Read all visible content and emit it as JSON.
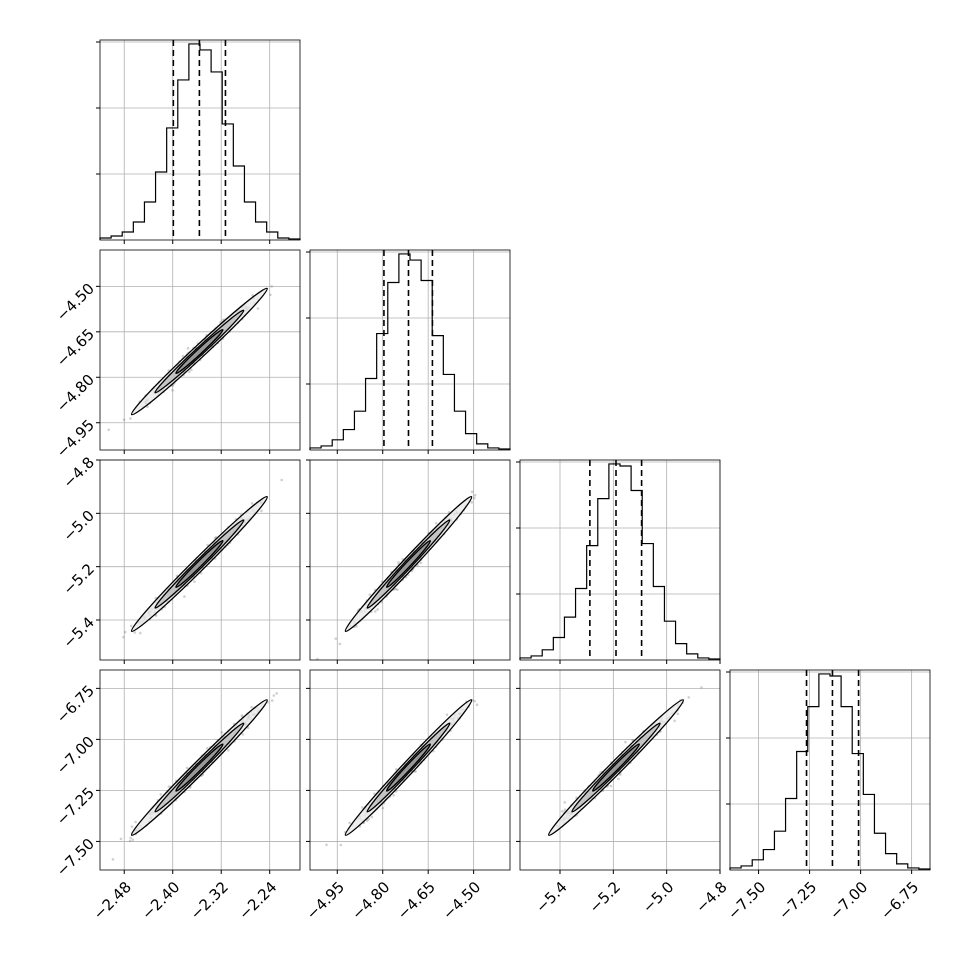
{
  "chart_data": {
    "type": "corner",
    "grid": true,
    "parameters": [
      {
        "index": 0,
        "range": [
          -2.52,
          -2.19
        ],
        "ticks": [
          -2.48,
          -2.4,
          -2.32,
          -2.24
        ],
        "tick_labels": [
          "−2.48",
          "−2.40",
          "−2.32",
          "−2.24"
        ],
        "quantiles": [
          -2.399,
          -2.356,
          -2.313
        ],
        "hist": [
          1,
          2,
          4,
          9,
          19,
          34,
          56,
          80,
          98,
          95,
          84,
          58,
          37,
          19,
          9,
          4,
          1,
          0.5
        ]
      },
      {
        "index": 1,
        "range": [
          -5.04,
          -4.38
        ],
        "ticks": [
          -4.95,
          -4.8,
          -4.65,
          -4.5
        ],
        "tick_labels": [
          "−4.95",
          "−4.80",
          "−4.65",
          "−4.50"
        ],
        "quantiles": [
          -4.796,
          -4.715,
          -4.636
        ],
        "hist": [
          1,
          2,
          5,
          10,
          19,
          35,
          57,
          82,
          96,
          93,
          83,
          56,
          37,
          19,
          8,
          3,
          1,
          0.5
        ]
      },
      {
        "index": 2,
        "range": [
          -5.55,
          -4.8
        ],
        "ticks": [
          -5.4,
          -5.2,
          -5.0,
          -4.8
        ],
        "tick_labels": [
          "−5.4",
          "−5.2",
          "−5.0",
          "−4.8"
        ],
        "quantiles": [
          -5.288,
          -5.19,
          -5.094
        ],
        "hist": [
          1,
          2,
          5,
          11,
          21,
          35,
          56,
          79,
          96,
          95,
          83,
          57,
          36,
          19,
          8,
          3,
          1,
          0.5
        ]
      },
      {
        "index": 3,
        "range": [
          -7.64,
          -6.66
        ],
        "ticks": [
          -7.5,
          -7.25,
          -7.0,
          -6.75
        ],
        "tick_labels": [
          "−7.50",
          "−7.25",
          "−7.00",
          "−6.75"
        ],
        "quantiles": [
          -7.265,
          -7.138,
          -7.01
        ],
        "hist": [
          1,
          2,
          5,
          10,
          19,
          35,
          58,
          80,
          96,
          95,
          80,
          57,
          37,
          18,
          8,
          3,
          1,
          0.5
        ]
      }
    ]
  }
}
